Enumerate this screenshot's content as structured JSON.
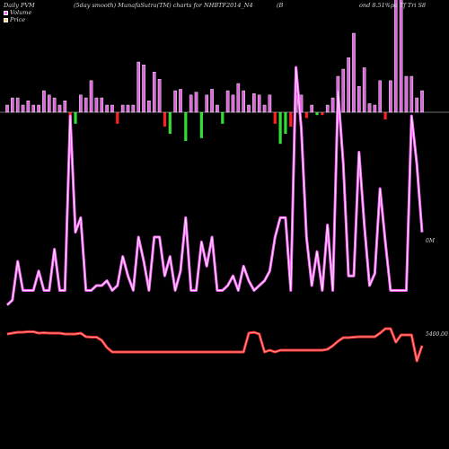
{
  "header": {
    "left": "Daily PVM",
    "middle": "(5day smooth) MunafaSutra(TM) charts for NHBTF2014_N4",
    "right_a": "(B",
    "right_b": "ond 8.51%pa  Tf  Tri  S8"
  },
  "legend": [
    {
      "label": "Volume",
      "color": "#ff66ff"
    },
    {
      "label": "Price",
      "color": "#ffd070"
    }
  ],
  "axis": {
    "volume_label": "0M",
    "price_label": "5400.00"
  },
  "colors": {
    "background": "#000000",
    "volume_line": "#ff66ff",
    "price_line": "#ff3030",
    "up_bar": "#e066e0",
    "down_bar": "#ff2020",
    "neg_bar": "#33dd33",
    "baseline": "#dddddd"
  },
  "chart_data": {
    "type": "line",
    "title": "Daily PVM (5day smooth) MunafaSutra(TM) charts for NHBTF2014_N4",
    "x": [
      1,
      2,
      3,
      4,
      5,
      6,
      7,
      8,
      9,
      10,
      11,
      12,
      13,
      14,
      15,
      16,
      17,
      18,
      19,
      20,
      21,
      22,
      23,
      24,
      25,
      26,
      27,
      28,
      29,
      30,
      31,
      32,
      33,
      34,
      35,
      36,
      37,
      38,
      39,
      40,
      41,
      42,
      43,
      44,
      45,
      46,
      47,
      48,
      49,
      50,
      51,
      52,
      53,
      54,
      55,
      56,
      57,
      58,
      59,
      60,
      61,
      62,
      63,
      64,
      65,
      66,
      67,
      68,
      69,
      70,
      71,
      72,
      73,
      74,
      75,
      76,
      77,
      78,
      79,
      80
    ],
    "series": [
      {
        "name": "Volume",
        "values": [
          12,
          14,
          30,
          18,
          18,
          18,
          26,
          18,
          18,
          35,
          18,
          18,
          90,
          42,
          48,
          18,
          18,
          20,
          20,
          22,
          18,
          20,
          32,
          24,
          18,
          40,
          30,
          18,
          40,
          40,
          24,
          32,
          18,
          26,
          48,
          18,
          18,
          38,
          28,
          40,
          18,
          18,
          20,
          24,
          18,
          28,
          22,
          18,
          20,
          22,
          26,
          40,
          48,
          48,
          18,
          110,
          85,
          40,
          20,
          34,
          18,
          45,
          18,
          100,
          70,
          24,
          24,
          75,
          45,
          20,
          25,
          60,
          38,
          18,
          18,
          18,
          18,
          90,
          70,
          42
        ]
      },
      {
        "name": "Price",
        "values": [
          0.95,
          1.0,
          1.05,
          1.05,
          1.08,
          1.08,
          1.0,
          1.02,
          1.0,
          1.0,
          1.0,
          0.95,
          0.95,
          0.95,
          1.0,
          0.8,
          0.78,
          0.78,
          0.6,
          0.2,
          -0.05,
          -0.05,
          -0.05,
          -0.05,
          -0.05,
          -0.05,
          -0.05,
          -0.05,
          -0.05,
          -0.05,
          -0.05,
          -0.05,
          -0.05,
          -0.05,
          -0.05,
          -0.05,
          -0.05,
          -0.05,
          -0.05,
          -0.05,
          -0.05,
          -0.05,
          -0.05,
          -0.05,
          -0.05,
          -0.05,
          1.0,
          1.05,
          0.95,
          -0.05,
          0.05,
          -0.05,
          0.05,
          0.05,
          0.05,
          0.05,
          0.05,
          0.05,
          0.05,
          0.05,
          0.05,
          0.1,
          0.3,
          0.55,
          0.75,
          0.75,
          0.78,
          0.8,
          0.8,
          0.8,
          0.8,
          1.0,
          1.25,
          1.25,
          0.5,
          0.9,
          0.9,
          0.9,
          -0.55,
          0.3
        ]
      },
      {
        "name": "Volume bars",
        "values": [
          0.5,
          1.0,
          1.0,
          0.5,
          0.8,
          0.5,
          0.5,
          1.5,
          1.2,
          1.0,
          0.5,
          0.8,
          -1.0,
          -0.8,
          1.2,
          1.0,
          2.2,
          1.0,
          1.0,
          0.5,
          0.5,
          -0.8,
          0.5,
          0.5,
          0.5,
          3.5,
          3.3,
          0.8,
          2.8,
          2.3,
          -1.0,
          -1.5,
          1.5,
          1.6,
          -2.0,
          1.2,
          1.4,
          -1.8,
          1.2,
          1.6,
          0.5,
          -0.8,
          1.5,
          1.2,
          2.0,
          1.5,
          0.5,
          1.3,
          1.2,
          0.5,
          1.2,
          -0.8,
          -2.2,
          -1.5,
          -1.0,
          1.2,
          1.2,
          -0.4,
          0.5,
          -0.2,
          -0.2,
          0.5,
          1.0,
          2.5,
          3.0,
          3.8,
          5.5,
          1.8,
          3.1,
          0.6,
          0.5,
          2.2,
          -0.5,
          2.2,
          8.0,
          8.0,
          2.5,
          2.5,
          1.0,
          1.5
        ]
      }
    ],
    "ylabel": "",
    "xlabel": ""
  }
}
